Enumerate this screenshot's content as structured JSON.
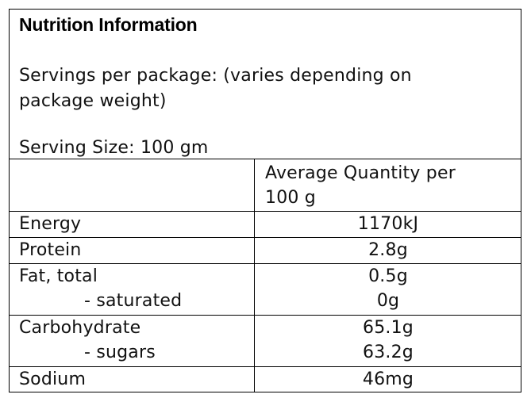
{
  "panel": {
    "title": "Nutrition Information",
    "servings_line1": "Servings per package: (varies depending on",
    "servings_line2": "package weight)",
    "serving_size": "Serving Size: 100 gm"
  },
  "table": {
    "column_header_line1": "Average Quantity per",
    "column_header_line2": "100 g",
    "rows": [
      {
        "label": "Energy",
        "value": "1170kJ"
      },
      {
        "label": "Protein",
        "value": "2.8g"
      },
      {
        "label": "Fat, total",
        "value": "0.5g"
      },
      {
        "label": "- saturated",
        "value": "0g"
      },
      {
        "label": "Carbohydrate",
        "value": "65.1g"
      },
      {
        "label": "- sugars",
        "value": "63.2g"
      },
      {
        "label": "Sodium",
        "value": "46mg"
      }
    ]
  }
}
